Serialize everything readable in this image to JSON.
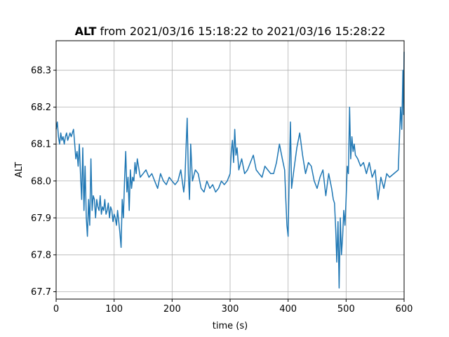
{
  "chart_data": {
    "type": "line",
    "title_bold": "ALT",
    "title_rest": " from 2021/03/16 15:18:22 to 2021/03/16 15:28:22",
    "xlabel": "time (s)",
    "ylabel": "ALT",
    "xlim": [
      0,
      600
    ],
    "ylim": [
      67.68,
      68.38
    ],
    "xticks": [
      0,
      100,
      200,
      300,
      400,
      500,
      600
    ],
    "yticks": [
      67.7,
      67.8,
      67.9,
      68.0,
      68.1,
      68.2,
      68.3
    ],
    "xtick_labels": [
      "0",
      "100",
      "200",
      "300",
      "400",
      "500",
      "600"
    ],
    "ytick_labels": [
      "67.7",
      "67.8",
      "67.9",
      "68.0",
      "68.1",
      "68.2",
      "68.3"
    ],
    "grid": true,
    "color": "#1f77b4",
    "series": [
      {
        "x": [
          0,
          2,
          4,
          6,
          8,
          10,
          12,
          14,
          16,
          18,
          20,
          22,
          24,
          26,
          28,
          30,
          32,
          34,
          36,
          38,
          40,
          42,
          44,
          46,
          48,
          50,
          52,
          54,
          56,
          58,
          60,
          62,
          64,
          66,
          68,
          70,
          72,
          74,
          76,
          78,
          80,
          82,
          84,
          86,
          88,
          90,
          92,
          94,
          96,
          98,
          100,
          102,
          104,
          106,
          108,
          110,
          112,
          114,
          116,
          118,
          120,
          122,
          124,
          126,
          128,
          130,
          132,
          134,
          136,
          138,
          140,
          145,
          150,
          155,
          160,
          165,
          170,
          175,
          180,
          185,
          190,
          195,
          200,
          205,
          210,
          215,
          220,
          222,
          224,
          226,
          228,
          230,
          232,
          235,
          240,
          245,
          250,
          255,
          260,
          265,
          270,
          275,
          280,
          285,
          290,
          295,
          300,
          302,
          304,
          306,
          308,
          310,
          312,
          315,
          320,
          325,
          330,
          335,
          340,
          345,
          350,
          355,
          360,
          365,
          370,
          375,
          380,
          385,
          390,
          394,
          396,
          398,
          400,
          402,
          404,
          406,
          410,
          415,
          420,
          425,
          430,
          435,
          440,
          445,
          450,
          455,
          460,
          465,
          470,
          475,
          478,
          480,
          482,
          484,
          486,
          488,
          490,
          492,
          494,
          496,
          498,
          500,
          502,
          504,
          506,
          508,
          510,
          512,
          514,
          516,
          520,
          525,
          530,
          535,
          540,
          545,
          550,
          555,
          560,
          565,
          570,
          575,
          590,
          594,
          596,
          598,
          599,
          600
        ],
        "y": [
          68.14,
          68.16,
          68.12,
          68.1,
          68.13,
          68.11,
          68.12,
          68.1,
          68.12,
          68.13,
          68.11,
          68.12,
          68.13,
          68.12,
          68.13,
          68.14,
          68.1,
          68.06,
          68.08,
          68.04,
          68.1,
          68.02,
          67.95,
          68.09,
          67.92,
          68.04,
          67.9,
          67.85,
          67.95,
          67.88,
          68.06,
          67.92,
          67.96,
          67.95,
          67.9,
          67.95,
          67.93,
          67.92,
          67.96,
          67.91,
          67.93,
          67.92,
          67.95,
          67.91,
          67.92,
          67.94,
          67.9,
          67.93,
          67.92,
          67.89,
          67.91,
          67.9,
          67.88,
          67.92,
          67.89,
          67.86,
          67.82,
          67.95,
          67.9,
          68.0,
          68.08,
          67.97,
          68.01,
          67.92,
          68.03,
          67.98,
          68.01,
          68.0,
          68.05,
          68.02,
          68.06,
          68.01,
          68.02,
          68.03,
          68.01,
          68.02,
          68.0,
          67.98,
          68.02,
          68.0,
          67.99,
          68.01,
          68.0,
          67.99,
          68.0,
          68.03,
          67.97,
          68.0,
          68.09,
          68.17,
          68.02,
          67.95,
          68.1,
          68.0,
          68.03,
          68.02,
          67.98,
          67.97,
          68.0,
          67.98,
          67.99,
          67.97,
          67.98,
          68.0,
          67.99,
          68.0,
          68.02,
          68.08,
          68.11,
          68.05,
          68.14,
          68.07,
          68.09,
          68.03,
          68.06,
          68.02,
          68.03,
          68.05,
          68.07,
          68.03,
          68.02,
          68.01,
          68.04,
          68.03,
          68.02,
          68.02,
          68.05,
          68.1,
          68.06,
          68.03,
          67.95,
          67.88,
          67.85,
          68.02,
          68.16,
          67.98,
          68.03,
          68.09,
          68.13,
          68.07,
          68.02,
          68.05,
          68.04,
          68.0,
          67.98,
          68.01,
          68.03,
          67.96,
          68.02,
          67.98,
          67.95,
          67.94,
          67.87,
          67.78,
          67.89,
          67.71,
          67.9,
          67.8,
          67.85,
          67.92,
          67.88,
          67.95,
          68.04,
          68.02,
          68.2,
          68.06,
          68.12,
          68.08,
          68.1,
          68.07,
          68.06,
          68.04,
          68.05,
          68.02,
          68.05,
          68.01,
          68.03,
          67.95,
          68.01,
          67.98,
          68.02,
          68.01,
          68.03,
          68.2,
          68.14,
          68.3,
          68.18,
          68.35
        ]
      }
    ]
  }
}
